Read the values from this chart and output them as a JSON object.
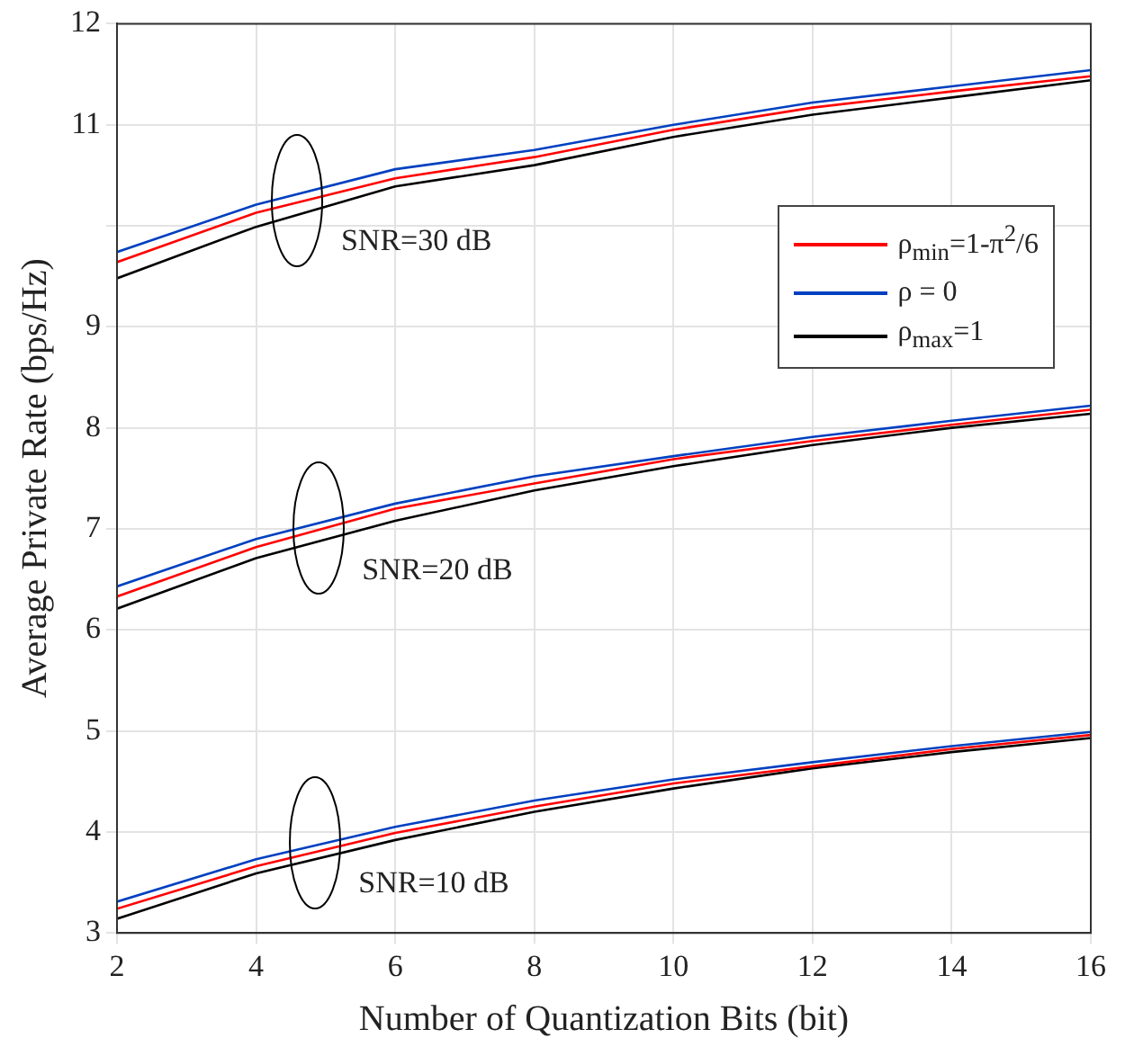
{
  "chart_data": {
    "type": "line",
    "xlabel": "Number of Quantization Bits (bit)",
    "ylabel": "Average Private Rate (bps/Hz)",
    "x": [
      2,
      4,
      6,
      8,
      10,
      12,
      14,
      16
    ],
    "series": [
      {
        "name": "ρ$_{min}$=1-π$^{2}$/6",
        "color": "#ff0000",
        "values": [
          9.64,
          10.13,
          10.47,
          10.68,
          10.95,
          11.17,
          11.33,
          11.48
        ]
      },
      {
        "name": "ρ = 0",
        "color": "#0040c0",
        "values": [
          9.74,
          10.21,
          10.56,
          10.75,
          11.0,
          11.22,
          11.38,
          11.54
        ]
      },
      {
        "name": "ρ$_{max}$=1",
        "color": "#000000",
        "values": [
          9.48,
          9.99,
          10.39,
          10.6,
          10.88,
          11.1,
          11.27,
          11.44
        ]
      },
      {
        "color": "#ff0000",
        "values": [
          6.33,
          6.82,
          7.2,
          7.45,
          7.69,
          7.87,
          8.03,
          8.18
        ]
      },
      {
        "color": "#0040c0",
        "values": [
          6.43,
          6.9,
          7.25,
          7.52,
          7.72,
          7.91,
          8.07,
          8.22
        ]
      },
      {
        "color": "#000000",
        "values": [
          6.21,
          6.71,
          7.08,
          7.38,
          7.62,
          7.83,
          8.0,
          8.14
        ]
      },
      {
        "color": "#ff0000",
        "values": [
          3.24,
          3.66,
          3.99,
          4.25,
          4.48,
          4.65,
          4.82,
          4.96
        ]
      },
      {
        "color": "#0040c0",
        "values": [
          3.31,
          3.73,
          4.05,
          4.31,
          4.52,
          4.69,
          4.85,
          4.99
        ]
      },
      {
        "color": "#000000",
        "values": [
          3.14,
          3.59,
          3.92,
          4.2,
          4.43,
          4.63,
          4.79,
          4.93
        ]
      }
    ],
    "xlim": [
      2,
      16
    ],
    "xticks": [
      2,
      4,
      6,
      8,
      10,
      12,
      14,
      16
    ],
    "ylim": [
      3,
      12
    ],
    "yticks": [
      3,
      4,
      5,
      6,
      7,
      8,
      9,
      {
        "value": 10,
        "label": null
      },
      11,
      12
    ],
    "annotations": [
      {
        "text": "SNR=30 dB",
        "x": 4.6,
        "y": 10.25
      },
      {
        "text": "SNR=20 dB",
        "x": 4.9,
        "y": 7.0
      },
      {
        "text": "SNR=10 dB",
        "x": 4.85,
        "y": 3.9
      }
    ],
    "grid": true,
    "legend": "right",
    "marker": "none",
    "line_style": "solid"
  }
}
